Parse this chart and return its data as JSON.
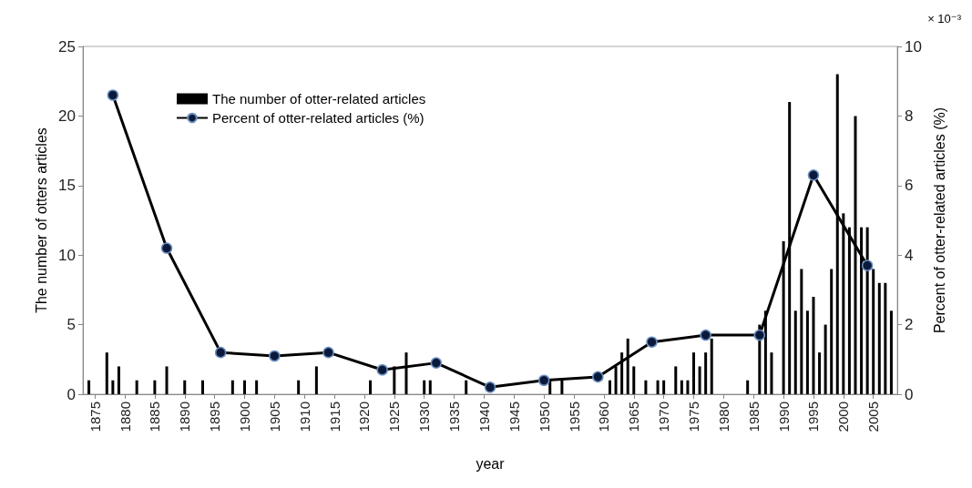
{
  "chart_data": {
    "type": "bar",
    "xlabel": "year",
    "ylabel": "The number of otters articles",
    "y2label": "Percent of otter-related articles (%)",
    "annotations": [
      "× 10⁻³"
    ],
    "xlim": [
      1873,
      2009
    ],
    "xticks": [
      1875,
      1880,
      1885,
      1890,
      1895,
      1900,
      1905,
      1910,
      1915,
      1920,
      1925,
      1930,
      1935,
      1940,
      1945,
      1950,
      1955,
      1960,
      1965,
      1970,
      1975,
      1980,
      1985,
      1990,
      1995,
      2000,
      2005
    ],
    "ylim": [
      0,
      25
    ],
    "yticks": [
      0,
      5,
      10,
      15,
      20,
      25
    ],
    "y2lim": [
      0,
      10
    ],
    "y2ticks": [
      0,
      2,
      4,
      6,
      8,
      10
    ],
    "grid": false,
    "legend": "top left",
    "series": [
      {
        "name": "The number of otter-related articles",
        "color": "#000000",
        "x": [
          1874,
          1877,
          1878,
          1879,
          1882,
          1885,
          1887,
          1890,
          1893,
          1898,
          1900,
          1902,
          1909,
          1912,
          1921,
          1925,
          1927,
          1930,
          1931,
          1937,
          1951,
          1953,
          1961,
          1962,
          1963,
          1964,
          1965,
          1967,
          1969,
          1970,
          1972,
          1973,
          1974,
          1975,
          1976,
          1977,
          1978,
          1984,
          1986,
          1987,
          1988,
          1990,
          1991,
          1992,
          1993,
          1994,
          1995,
          1996,
          1997,
          1998,
          1999,
          2000,
          2001,
          2002,
          2003,
          2004,
          2005,
          2006,
          2007,
          2008
        ],
        "values": [
          1,
          3,
          1,
          2,
          1,
          1,
          2,
          1,
          1,
          1,
          1,
          1,
          1,
          2,
          1,
          2,
          3,
          1,
          1,
          1,
          1,
          1,
          1,
          2,
          3,
          4,
          2,
          1,
          1,
          1,
          2,
          1,
          1,
          3,
          2,
          3,
          4,
          1,
          5,
          6,
          3,
          11,
          21,
          6,
          9,
          6,
          7,
          3,
          5,
          9,
          23,
          13,
          12,
          20,
          12,
          12,
          9,
          8,
          8,
          6
        ]
      },
      {
        "name": "Percent of otter-related articles (%)",
        "type": "line",
        "axis": "y2",
        "color": "#000000",
        "marker": "circle",
        "line_style": "solid",
        "x": [
          1878,
          1887,
          1896,
          1905,
          1914,
          1923,
          1932,
          1941,
          1950,
          1959,
          1968,
          1977,
          1986,
          1995,
          2004
        ],
        "values": [
          8.6,
          4.2,
          1.2,
          1.1,
          1.2,
          0.7,
          0.9,
          0.2,
          0.4,
          0.5,
          1.5,
          1.7,
          1.7,
          6.3,
          3.7
        ]
      }
    ]
  }
}
